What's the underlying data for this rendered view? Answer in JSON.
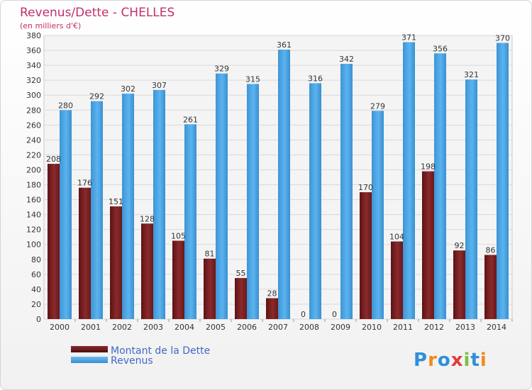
{
  "chart_data": {
    "type": "bar",
    "title": "Revenus/Dette - CHELLES",
    "subtitle": "(en milliers d'€)",
    "categories": [
      "2000",
      "2001",
      "2002",
      "2003",
      "2004",
      "2005",
      "2006",
      "2007",
      "2008",
      "2009",
      "2010",
      "2011",
      "2012",
      "2013",
      "2014"
    ],
    "series": [
      {
        "name": "Montant de la Dette",
        "color": "#7a1f22",
        "values": [
          208,
          176,
          151,
          128,
          105,
          81,
          55,
          28,
          0,
          0,
          170,
          104,
          198,
          92,
          86
        ]
      },
      {
        "name": "Revenus",
        "color": "#4aa3e3",
        "values": [
          280,
          292,
          302,
          307,
          261,
          329,
          315,
          361,
          316,
          342,
          279,
          371,
          356,
          321,
          370
        ]
      }
    ],
    "ylim": [
      0,
      380
    ],
    "ystep": 20,
    "grid": true,
    "legend_position": "bottom-left"
  },
  "logo": {
    "text": "Proxiti"
  }
}
